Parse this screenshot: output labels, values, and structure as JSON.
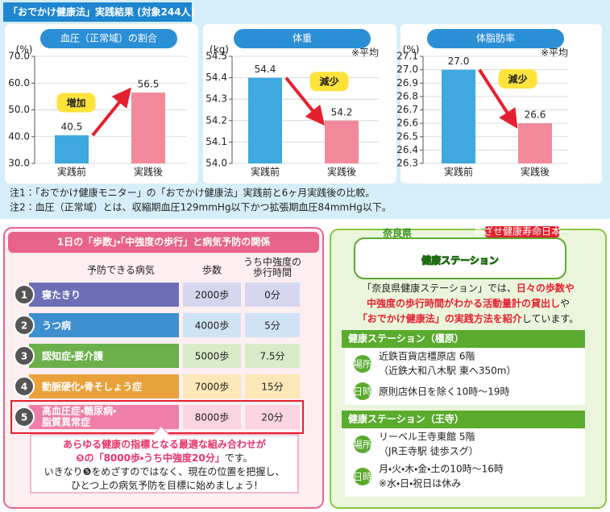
{
  "header": {
    "title": "「おでかけ健康法」実践結果",
    "subtitle": "(対象244人)"
  },
  "chart_data": [
    {
      "type": "bar",
      "title": "血圧（正常域）の割合",
      "unit": "(%)",
      "categories": [
        "実践前",
        "実践後"
      ],
      "values": [
        40.5,
        56.5
      ],
      "colors": [
        "#3ea8df",
        "#f28a9b"
      ],
      "ylim": [
        30,
        70
      ],
      "yticks": [
        {
          "value": 30,
          "label": "30.0"
        },
        {
          "value": 40,
          "label": "40.0"
        },
        {
          "value": 50,
          "label": "50.0"
        },
        {
          "value": 60,
          "label": "60.0"
        },
        {
          "value": 70,
          "label": "70.0"
        }
      ],
      "annotation": "増加"
    },
    {
      "type": "bar",
      "title": "体重",
      "unit": "(kg)",
      "note": "※平均",
      "categories": [
        "実践前",
        "実践後"
      ],
      "values": [
        54.4,
        54.2
      ],
      "colors": [
        "#3ea8df",
        "#f28a9b"
      ],
      "ylim": [
        54.0,
        54.5
      ],
      "yticks": [
        {
          "value": 54.0,
          "label": "54.0"
        },
        54.1,
        54.2,
        54.3,
        54.4,
        54.5
      ],
      "annotation": "減少"
    },
    {
      "type": "bar",
      "title": "体脂肪率",
      "unit": "(%)",
      "note": "※平均",
      "categories": [
        "実践前",
        "実践後"
      ],
      "values": [
        27.0,
        26.6
      ],
      "value_labels": [
        "27.0",
        "26.6"
      ],
      "colors": [
        "#3ea8df",
        "#f28a9b"
      ],
      "ylim": [
        26.3,
        27.1
      ],
      "yticks": [
        26.3,
        26.4,
        26.5,
        26.6,
        26.7,
        26.8,
        26.9,
        {
          "value": 27.0,
          "label": "27.0"
        },
        27.1
      ],
      "annotation": "減少"
    }
  ],
  "notes": [
    "注1：「おでかけ健康モニター」の「おでかけ健康法」実践前と6ヶ月実践後の比較。",
    "注2：血圧（正常域）とは、収縮期血圧129mmHg以下かつ拡張期血圧84mmHg以下。"
  ],
  "steps_table": {
    "title": "1日の「歩数」・「中強度の歩行」と病気予防の関係",
    "columns": [
      [
        "予防できる病気"
      ],
      [
        "歩数"
      ],
      [
        "うち中強度の",
        "歩行時間"
      ]
    ],
    "rows": [
      {
        "number": "1",
        "disease": [
          "寝たきり"
        ],
        "steps": "2000歩",
        "minutes": "0分",
        "color": "#6d6fb6",
        "cell": "#d6d7ee"
      },
      {
        "number": "2",
        "disease": [
          "うつ病"
        ],
        "steps": "4000歩",
        "minutes": "5分",
        "color": "#3d8fd0",
        "cell": "#cfe3f5"
      },
      {
        "number": "3",
        "disease": [
          "認知症・要介護"
        ],
        "steps": "5000歩",
        "minutes": "7.5分",
        "color": "#6bb04a",
        "cell": "#d9ecc9"
      },
      {
        "number": "4",
        "disease": [
          "動脈硬化・骨そしょう症"
        ],
        "steps": "7000歩",
        "minutes": "15分",
        "color": "#e9a23b",
        "cell": "#fbe7b8"
      },
      {
        "number": "5",
        "disease": [
          "高血圧症・糖尿病・",
          "脂質異常症"
        ],
        "steps": "8000歩",
        "minutes": "20分",
        "color": "#ef7fa8",
        "cell": "#fad4e1"
      }
    ],
    "callout": [
      [
        {
          "text": "あらゆる健康の指標となる最適な組み合わせが",
          "highlight": true
        }
      ],
      [
        {
          "text": "❺の「8000歩・うち中強度20分」",
          "highlight": true
        },
        {
          "text": "です。",
          "highlight": false
        }
      ],
      [
        {
          "text": "いきなり❺をめざすのではなく、現在の位置を把握し、",
          "highlight": false
        }
      ],
      [
        {
          "text": "ひとつ上の病気予防を目標に始めましょう!",
          "highlight": false
        }
      ]
    ]
  },
  "station": {
    "prefecture": "奈良県",
    "name": "健康ステーション",
    "badge": "めざせ健康寿命日本一",
    "intro": [
      [
        {
          "text": "「奈良県健康ステーション」では、",
          "highlight": false
        },
        {
          "text": "日々の歩数や",
          "highlight": true
        }
      ],
      [
        {
          "text": "中強度の歩行時間がわかる活動量計の貸出し",
          "highlight": true
        },
        {
          "text": "や",
          "highlight": false
        }
      ],
      [
        {
          "text": "「おでかけ健康法」の実践方法を紹介",
          "highlight": true
        },
        {
          "text": "しています。",
          "highlight": false
        }
      ]
    ],
    "locations": [
      {
        "name": "健康ステーション（橿原）",
        "place_tag": "場所",
        "place": [
          "近鉄百貨店橿原店 6階",
          "（近鉄大和八木駅 東へ350m）"
        ],
        "time_tag": "日時",
        "time": [
          "原則店休日を除く10時～19時"
        ]
      },
      {
        "name": "健康ステーション（王寺）",
        "place_tag": "場所",
        "place": [
          "リーベル王寺東館 5階",
          "（JR王寺駅 徒歩スグ）"
        ],
        "time_tag": "日時",
        "time": [
          "月・火・木・金・土の10時～16時",
          "※水・日・祝日は休み"
        ]
      }
    ]
  }
}
